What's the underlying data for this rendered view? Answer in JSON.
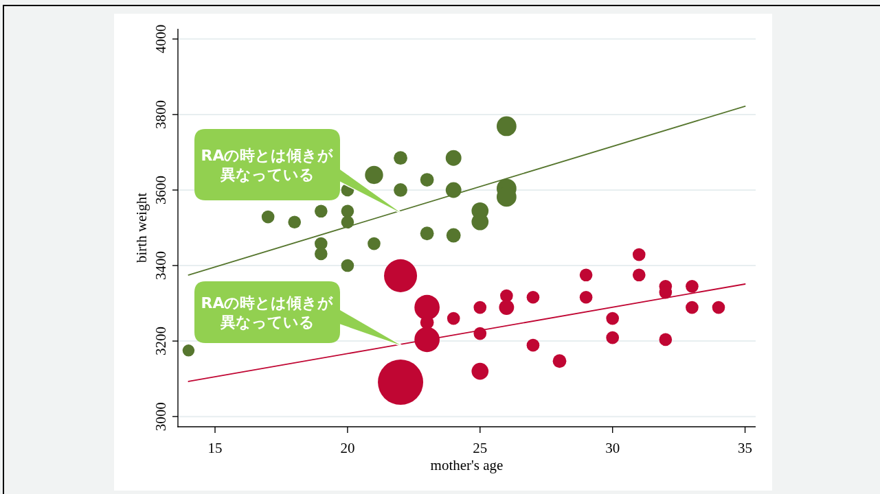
{
  "chart_data": {
    "type": "bubble",
    "xlabel": "mother's age",
    "ylabel": "birth weight",
    "xlim": [
      13.6,
      35.4
    ],
    "ylim": [
      2973,
      4027
    ],
    "xticks": [
      15,
      20,
      25,
      30,
      35
    ],
    "yticks": [
      3000,
      3200,
      3400,
      3600,
      3800,
      4000
    ],
    "grid": "y",
    "series": [
      {
        "color": "#56762e",
        "x": [
          14,
          17,
          18,
          19,
          19,
          19,
          20,
          20,
          20,
          20,
          21,
          21,
          22,
          22,
          23,
          23,
          24,
          24,
          24,
          25,
          25,
          26,
          26,
          26
        ],
        "values": [
          3175,
          3529,
          3515,
          3544,
          3458,
          3431,
          3600,
          3544,
          3515,
          3400,
          3640,
          3458,
          3685,
          3600,
          3627,
          3485,
          3685,
          3600,
          3480,
          3545,
          3516,
          3769,
          3604,
          3582
        ],
        "sizes": [
          0.07,
          0.08,
          0.08,
          0.08,
          0.08,
          0.08,
          0.08,
          0.08,
          0.08,
          0.08,
          0.16,
          0.08,
          0.09,
          0.09,
          0.09,
          0.09,
          0.12,
          0.12,
          0.1,
          0.14,
          0.14,
          0.19,
          0.19,
          0.19
        ]
      },
      {
        "color": "#c00633",
        "x": [
          22,
          22,
          23,
          23,
          23,
          24,
          25,
          25,
          25,
          26,
          26,
          27,
          27,
          28,
          29,
          29,
          30,
          30,
          31,
          31,
          32,
          32,
          32,
          33,
          33,
          34
        ],
        "values": [
          3373,
          3091,
          3289,
          3249,
          3204,
          3260,
          3289,
          3220,
          3120,
          3320,
          3289,
          3316,
          3189,
          3147,
          3375,
          3316,
          3260,
          3209,
          3429,
          3375,
          3345,
          3329,
          3204,
          3345,
          3289,
          3289
        ],
        "sizes": [
          0.53,
          1,
          0.31,
          0.09,
          0.31,
          0.08,
          0.08,
          0.08,
          0.14,
          0.08,
          0.11,
          0.08,
          0.08,
          0.09,
          0.08,
          0.08,
          0.08,
          0.08,
          0.08,
          0.08,
          0.08,
          0.08,
          0.08,
          0.08,
          0.08,
          0.08
        ]
      },
      {
        "type": "line",
        "color": "#56762e",
        "x": [
          14,
          35
        ],
        "values": [
          3375,
          3822
        ]
      },
      {
        "type": "line",
        "color": "#c00633",
        "x": [
          14,
          35
        ],
        "values": [
          3093,
          3351
        ]
      }
    ],
    "annotations": [
      "RAの時とは傾きが異なっている",
      "RAの時とは傾きが異なっている"
    ]
  }
}
